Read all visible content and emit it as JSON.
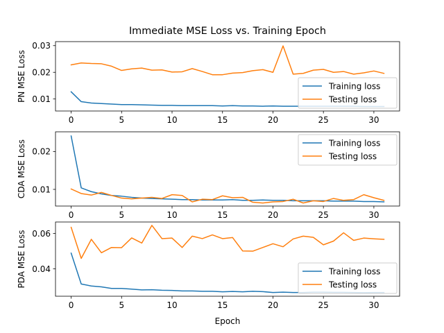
{
  "figure": {
    "title": "Immediate MSE Loss vs. Training Epoch",
    "xlabel": "Epoch",
    "colors": {
      "training": "#1f77b4",
      "testing": "#ff7f0e"
    }
  },
  "chart_data": [
    {
      "type": "line",
      "ylabel": "PN MSE Loss",
      "xlim": [
        -1.55,
        32.55
      ],
      "ylim": [
        0.0055,
        0.0315
      ],
      "xticks": [
        0,
        5,
        10,
        15,
        20,
        25,
        30
      ],
      "yticks": [
        0.01,
        0.02,
        0.03
      ],
      "ytick_labels": [
        "0.01",
        "0.02",
        "0.03"
      ],
      "legend_location": "lower-right",
      "x": [
        0,
        1,
        2,
        3,
        4,
        5,
        6,
        7,
        8,
        9,
        10,
        11,
        12,
        13,
        14,
        15,
        16,
        17,
        18,
        19,
        20,
        21,
        22,
        23,
        24,
        25,
        26,
        27,
        28,
        29,
        30,
        31
      ],
      "series": [
        {
          "name": "Training loss",
          "values": [
            0.0127,
            0.009,
            0.0085,
            0.0083,
            0.0081,
            0.0079,
            0.0079,
            0.0078,
            0.0077,
            0.0076,
            0.0076,
            0.0075,
            0.0075,
            0.0075,
            0.0075,
            0.0074,
            0.0075,
            0.0074,
            0.0074,
            0.0073,
            0.0074,
            0.0073,
            0.0073,
            0.0073,
            0.0073,
            0.0073,
            0.0073,
            0.0073,
            0.0073,
            0.0072,
            0.0072,
            0.0072
          ]
        },
        {
          "name": "Testing loss",
          "values": [
            0.0228,
            0.0235,
            0.0233,
            0.0232,
            0.0223,
            0.0207,
            0.0213,
            0.0216,
            0.0208,
            0.0209,
            0.0201,
            0.0202,
            0.0214,
            0.0203,
            0.0191,
            0.0191,
            0.0197,
            0.0199,
            0.0206,
            0.021,
            0.02,
            0.0299,
            0.0193,
            0.0196,
            0.0208,
            0.0211,
            0.02,
            0.0203,
            0.0193,
            0.0198,
            0.0205,
            0.0196
          ]
        }
      ]
    },
    {
      "type": "line",
      "ylabel": "CDA MSE Loss",
      "xlim": [
        -1.55,
        32.55
      ],
      "ylim": [
        0.0056,
        0.0252
      ],
      "xticks": [
        0,
        5,
        10,
        15,
        20,
        25,
        30
      ],
      "yticks": [
        0.01,
        0.02
      ],
      "ytick_labels": [
        "0.01",
        "0.02"
      ],
      "legend_location": "upper-right",
      "x": [
        0,
        1,
        2,
        3,
        4,
        5,
        6,
        7,
        8,
        9,
        10,
        11,
        12,
        13,
        14,
        15,
        16,
        17,
        18,
        19,
        20,
        21,
        22,
        23,
        24,
        25,
        26,
        27,
        28,
        29,
        30,
        31
      ],
      "series": [
        {
          "name": "Training loss",
          "values": [
            0.0241,
            0.0104,
            0.0094,
            0.0088,
            0.0084,
            0.0082,
            0.0079,
            0.0077,
            0.0076,
            0.0075,
            0.0074,
            0.0073,
            0.0073,
            0.0072,
            0.0072,
            0.0072,
            0.0073,
            0.0071,
            0.0071,
            0.0072,
            0.0071,
            0.0071,
            0.007,
            0.007,
            0.007,
            0.007,
            0.0069,
            0.0069,
            0.0069,
            0.0068,
            0.0068,
            0.0067
          ]
        },
        {
          "name": "Testing loss",
          "values": [
            0.0101,
            0.0089,
            0.0085,
            0.0092,
            0.0084,
            0.0077,
            0.0075,
            0.0077,
            0.0079,
            0.0076,
            0.0086,
            0.0084,
            0.0067,
            0.0074,
            0.0073,
            0.0083,
            0.0078,
            0.0079,
            0.0066,
            0.0064,
            0.0067,
            0.0068,
            0.0074,
            0.0064,
            0.007,
            0.0068,
            0.0076,
            0.0071,
            0.0073,
            0.0086,
            0.0078,
            0.0071
          ]
        }
      ]
    },
    {
      "type": "line",
      "ylabel": "PDA MSE Loss",
      "xlim": [
        -1.55,
        32.55
      ],
      "ylim": [
        0.0245,
        0.0665
      ],
      "xticks": [
        0,
        5,
        10,
        15,
        20,
        25,
        30
      ],
      "yticks": [
        0.04,
        0.06
      ],
      "ytick_labels": [
        "0.04",
        "0.06"
      ],
      "legend_location": "lower-right",
      "x": [
        0,
        1,
        2,
        3,
        4,
        5,
        6,
        7,
        8,
        9,
        10,
        11,
        12,
        13,
        14,
        15,
        16,
        17,
        18,
        19,
        20,
        21,
        22,
        23,
        24,
        25,
        26,
        27,
        28,
        29,
        30,
        31
      ],
      "series": [
        {
          "name": "Training loss",
          "values": [
            0.0489,
            0.0314,
            0.0303,
            0.0298,
            0.0289,
            0.0289,
            0.0285,
            0.0281,
            0.0282,
            0.0279,
            0.0278,
            0.0275,
            0.0275,
            0.0273,
            0.0273,
            0.027,
            0.0272,
            0.027,
            0.0273,
            0.0271,
            0.0266,
            0.0268,
            0.0266,
            0.0266,
            0.0268,
            0.0268,
            0.0267,
            0.0267,
            0.0266,
            0.0265,
            0.0266,
            0.0266
          ]
        },
        {
          "name": "Testing loss",
          "values": [
            0.0635,
            0.0459,
            0.0567,
            0.0491,
            0.0521,
            0.052,
            0.0575,
            0.0546,
            0.0646,
            0.0571,
            0.0574,
            0.0521,
            0.0585,
            0.0571,
            0.0592,
            0.0571,
            0.0577,
            0.0501,
            0.05,
            0.0521,
            0.0542,
            0.0525,
            0.0569,
            0.0585,
            0.0578,
            0.0536,
            0.0557,
            0.0604,
            0.0561,
            0.0574,
            0.057,
            0.0567
          ]
        }
      ]
    }
  ]
}
